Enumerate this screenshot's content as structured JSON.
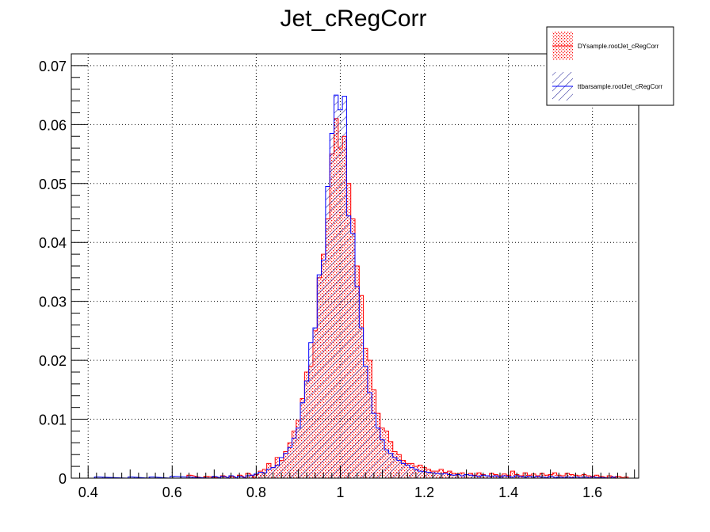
{
  "chart_data": {
    "type": "histogram",
    "title": "Jet_cRegCorr",
    "xlabel": "",
    "ylabel": "",
    "xlim": [
      0.36,
      1.71
    ],
    "ylim": [
      0,
      0.072
    ],
    "x_ticks": [
      "0.4",
      "0.6",
      "0.8",
      "1",
      "1.2",
      "1.4",
      "1.6"
    ],
    "x_tick_values": [
      0.4,
      0.6,
      0.8,
      1.0,
      1.2,
      1.4,
      1.6
    ],
    "y_ticks": [
      "0",
      "0.01",
      "0.02",
      "0.03",
      "0.04",
      "0.05",
      "0.06",
      "0.07"
    ],
    "y_tick_values": [
      0,
      0.01,
      0.02,
      0.03,
      0.04,
      0.05,
      0.06,
      0.07
    ],
    "grid": true,
    "legend_position": "top-right",
    "bin_width": 0.01,
    "series": [
      {
        "name": "DYsample.rootJet_cRegCorr",
        "color": "#ff0000",
        "fill": "dotted",
        "points": [
          [
            0.64,
            0.0005
          ],
          [
            0.68,
            0.0003
          ],
          [
            0.72,
            0.0004
          ],
          [
            0.74,
            0.0003
          ],
          [
            0.76,
            0.0005
          ],
          [
            0.78,
            0.0008
          ],
          [
            0.8,
            0.0006
          ],
          [
            0.81,
            0.0012
          ],
          [
            0.82,
            0.0015
          ],
          [
            0.83,
            0.0025
          ],
          [
            0.84,
            0.0018
          ],
          [
            0.85,
            0.0035
          ],
          [
            0.86,
            0.003
          ],
          [
            0.87,
            0.0045
          ],
          [
            0.88,
            0.006
          ],
          [
            0.89,
            0.008
          ],
          [
            0.9,
            0.0098
          ],
          [
            0.91,
            0.0135
          ],
          [
            0.92,
            0.018
          ],
          [
            0.93,
            0.019
          ],
          [
            0.94,
            0.025
          ],
          [
            0.95,
            0.034
          ],
          [
            0.96,
            0.038
          ],
          [
            0.97,
            0.044
          ],
          [
            0.98,
            0.055
          ],
          [
            0.99,
            0.061
          ],
          [
            1.0,
            0.056
          ],
          [
            1.01,
            0.058
          ],
          [
            1.02,
            0.05
          ],
          [
            1.03,
            0.044
          ],
          [
            1.04,
            0.036
          ],
          [
            1.05,
            0.031
          ],
          [
            1.06,
            0.022
          ],
          [
            1.07,
            0.02
          ],
          [
            1.08,
            0.015
          ],
          [
            1.09,
            0.011
          ],
          [
            1.1,
            0.0085
          ],
          [
            1.11,
            0.008
          ],
          [
            1.12,
            0.0062
          ],
          [
            1.13,
            0.0045
          ],
          [
            1.14,
            0.004
          ],
          [
            1.15,
            0.003
          ],
          [
            1.16,
            0.0025
          ],
          [
            1.17,
            0.0025
          ],
          [
            1.18,
            0.002
          ],
          [
            1.19,
            0.0022
          ],
          [
            1.2,
            0.0018
          ],
          [
            1.21,
            0.0015
          ],
          [
            1.22,
            0.0012
          ],
          [
            1.23,
            0.0012
          ],
          [
            1.24,
            0.0015
          ],
          [
            1.25,
            0.001
          ],
          [
            1.26,
            0.0012
          ],
          [
            1.27,
            0.0008
          ],
          [
            1.28,
            0.0007
          ],
          [
            1.29,
            0.0009
          ],
          [
            1.3,
            0.0006
          ],
          [
            1.31,
            0.0008
          ],
          [
            1.32,
            0.0005
          ],
          [
            1.33,
            0.0009
          ],
          [
            1.34,
            0.0006
          ],
          [
            1.35,
            0.0004
          ],
          [
            1.36,
            0.0008
          ],
          [
            1.37,
            0.0006
          ],
          [
            1.38,
            0.0004
          ],
          [
            1.39,
            0.0007
          ],
          [
            1.4,
            0.0005
          ],
          [
            1.41,
            0.0012
          ],
          [
            1.42,
            0.0006
          ],
          [
            1.43,
            0.0004
          ],
          [
            1.44,
            0.0009
          ],
          [
            1.45,
            0.0005
          ],
          [
            1.46,
            0.0007
          ],
          [
            1.47,
            0.0004
          ],
          [
            1.48,
            0.0008
          ],
          [
            1.49,
            0.0005
          ],
          [
            1.5,
            0.0006
          ],
          [
            1.51,
            0.0009
          ],
          [
            1.52,
            0.0005
          ],
          [
            1.53,
            0.0004
          ],
          [
            1.54,
            0.0008
          ],
          [
            1.55,
            0.0006
          ],
          [
            1.56,
            0.0005
          ],
          [
            1.57,
            0.0004
          ],
          [
            1.58,
            0.0006
          ],
          [
            1.59,
            0.0004
          ],
          [
            1.6,
            0.0003
          ],
          [
            1.61,
            0.0005
          ],
          [
            1.62,
            0.0003
          ],
          [
            1.64,
            0.0004
          ],
          [
            1.66,
            0.0003
          ],
          [
            1.68,
            0.0002
          ]
        ]
      },
      {
        "name": "ttbarsample.rootJet_cRegCorr",
        "color": "#0000ff",
        "fill": "hatched",
        "points": [
          [
            0.42,
            0.0002
          ],
          [
            0.5,
            0.0002
          ],
          [
            0.55,
            0.0002
          ],
          [
            0.6,
            0.0003
          ],
          [
            0.7,
            0.0003
          ],
          [
            0.72,
            0.0003
          ],
          [
            0.74,
            0.0004
          ],
          [
            0.76,
            0.0003
          ],
          [
            0.78,
            0.0004
          ],
          [
            0.79,
            0.0005
          ],
          [
            0.8,
            0.0007
          ],
          [
            0.81,
            0.001
          ],
          [
            0.82,
            0.0009
          ],
          [
            0.83,
            0.0015
          ],
          [
            0.84,
            0.0018
          ],
          [
            0.85,
            0.0022
          ],
          [
            0.86,
            0.0035
          ],
          [
            0.87,
            0.0042
          ],
          [
            0.88,
            0.0052
          ],
          [
            0.89,
            0.0068
          ],
          [
            0.9,
            0.0085
          ],
          [
            0.91,
            0.0128
          ],
          [
            0.92,
            0.0165
          ],
          [
            0.93,
            0.023
          ],
          [
            0.94,
            0.0255
          ],
          [
            0.95,
            0.0345
          ],
          [
            0.96,
            0.037
          ],
          [
            0.97,
            0.0495
          ],
          [
            0.98,
            0.0585
          ],
          [
            0.99,
            0.065
          ],
          [
            1.0,
            0.0625
          ],
          [
            1.01,
            0.0648
          ],
          [
            1.02,
            0.0445
          ],
          [
            1.03,
            0.0415
          ],
          [
            1.04,
            0.0325
          ],
          [
            1.05,
            0.0255
          ],
          [
            1.06,
            0.019
          ],
          [
            1.07,
            0.0145
          ],
          [
            1.08,
            0.011
          ],
          [
            1.09,
            0.0085
          ],
          [
            1.1,
            0.0065
          ],
          [
            1.11,
            0.0048
          ],
          [
            1.12,
            0.0042
          ],
          [
            1.13,
            0.0035
          ],
          [
            1.14,
            0.003
          ],
          [
            1.15,
            0.0025
          ],
          [
            1.16,
            0.0022
          ],
          [
            1.17,
            0.0018
          ],
          [
            1.18,
            0.0015
          ],
          [
            1.19,
            0.0012
          ],
          [
            1.2,
            0.0011
          ],
          [
            1.21,
            0.001
          ],
          [
            1.22,
            0.0009
          ],
          [
            1.23,
            0.0008
          ],
          [
            1.24,
            0.0007
          ],
          [
            1.25,
            0.0008
          ],
          [
            1.26,
            0.0006
          ],
          [
            1.27,
            0.0005
          ],
          [
            1.28,
            0.0006
          ],
          [
            1.29,
            0.0004
          ],
          [
            1.3,
            0.0006
          ],
          [
            1.31,
            0.0005
          ],
          [
            1.32,
            0.0004
          ],
          [
            1.33,
            0.0003
          ],
          [
            1.34,
            0.0005
          ],
          [
            1.35,
            0.0004
          ],
          [
            1.36,
            0.0003
          ],
          [
            1.37,
            0.0004
          ],
          [
            1.38,
            0.0002
          ],
          [
            1.39,
            0.0004
          ],
          [
            1.4,
            0.0003
          ],
          [
            1.41,
            0.0002
          ],
          [
            1.42,
            0.0004
          ],
          [
            1.43,
            0.0003
          ],
          [
            1.44,
            0.0002
          ],
          [
            1.45,
            0.0003
          ],
          [
            1.46,
            0.0002
          ],
          [
            1.47,
            0.0003
          ],
          [
            1.48,
            0.0002
          ],
          [
            1.5,
            0.0003
          ],
          [
            1.52,
            0.0002
          ],
          [
            1.54,
            0.0002
          ],
          [
            1.56,
            0.0002
          ],
          [
            1.58,
            0.0002
          ],
          [
            1.6,
            0.0002
          ],
          [
            1.62,
            0.0001
          ],
          [
            1.65,
            0.0002
          ]
        ]
      }
    ]
  }
}
